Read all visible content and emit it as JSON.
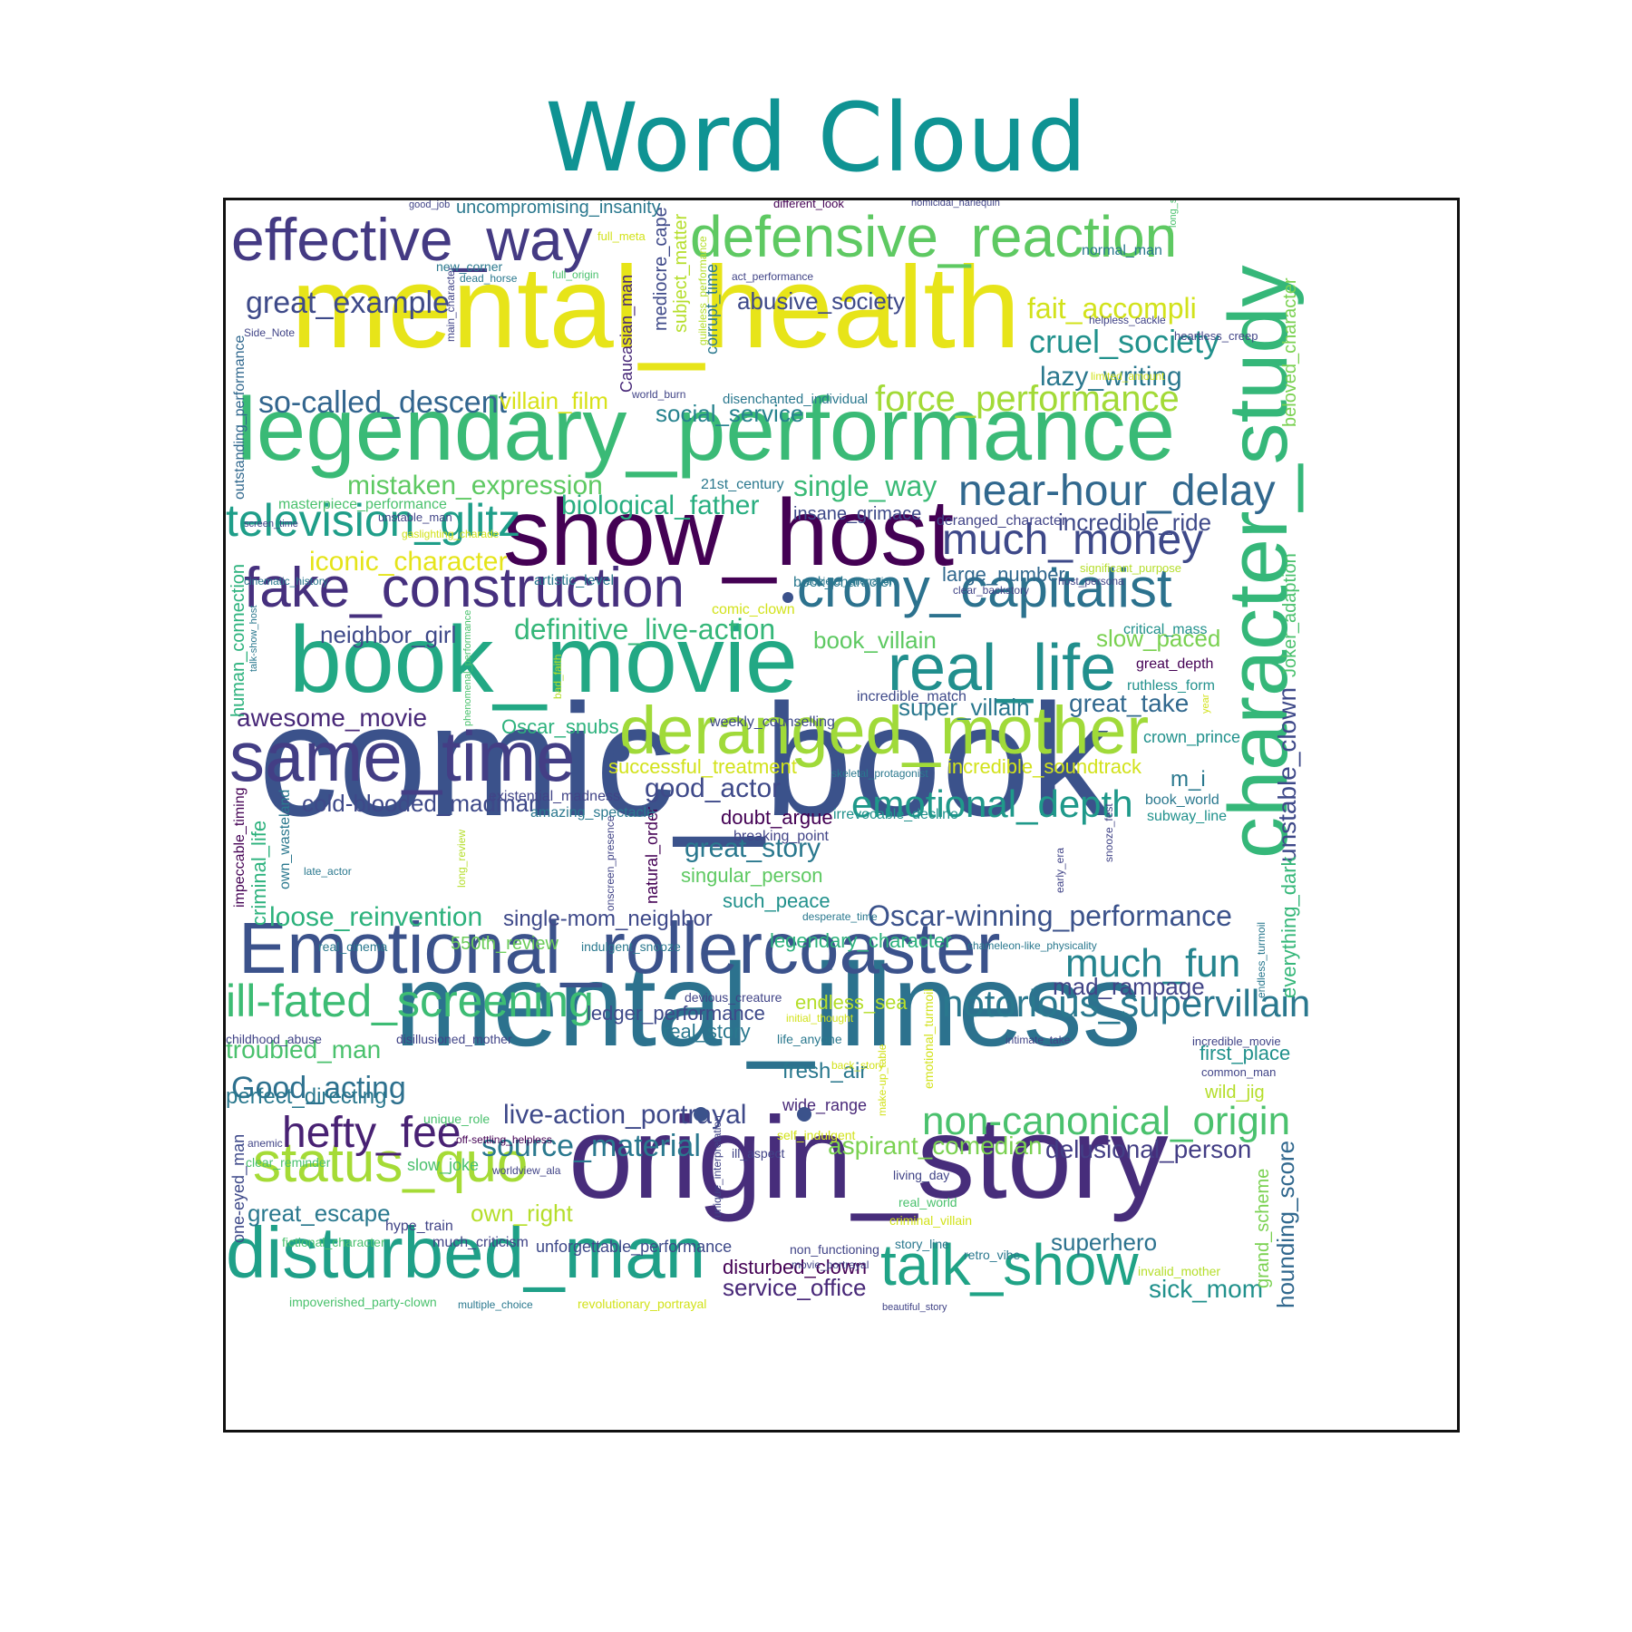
{
  "chart_data": {
    "type": "wordcloud",
    "title": "Word Cloud",
    "colormap": "viridis",
    "words": [
      {
        "text": "comic_book",
        "rank": 1,
        "color": "#3b528b"
      },
      {
        "text": "mental_health",
        "rank": 2,
        "color": "#e7e419"
      },
      {
        "text": "mental_illness",
        "rank": 3,
        "color": "#2c728e"
      },
      {
        "text": "origin_story",
        "rank": 4,
        "color": "#472d7b"
      },
      {
        "text": "legendary_performance",
        "rank": 5,
        "color": "#3aba76"
      },
      {
        "text": "character_study",
        "rank": 6,
        "color": "#35b779"
      },
      {
        "text": "show_host",
        "rank": 7,
        "color": "#440154"
      },
      {
        "text": "book_movie",
        "rank": 8,
        "color": "#22a884"
      },
      {
        "text": "Emotional_rollercoaster",
        "rank": 9,
        "color": "#3b528b"
      },
      {
        "text": "disturbed_man",
        "rank": 10,
        "color": "#1fa088"
      },
      {
        "text": "defensive_reaction",
        "rank": 11,
        "color": "#5ec962"
      },
      {
        "text": "effective_way",
        "rank": 12,
        "color": "#443a83"
      },
      {
        "text": "same_time",
        "rank": 13,
        "color": "#433e85"
      },
      {
        "text": "deranged_mother",
        "rank": 14,
        "color": "#a0da39"
      },
      {
        "text": "real_life",
        "rank": 15,
        "color": "#218f8d"
      },
      {
        "text": "fake_construction",
        "rank": 16,
        "color": "#46307e"
      },
      {
        "text": "crony_capitalist",
        "rank": 17,
        "color": "#2c728e"
      },
      {
        "text": "talk_show",
        "rank": 18,
        "color": "#20a386"
      },
      {
        "text": "status_quo",
        "rank": 19,
        "color": "#a5db36"
      },
      {
        "text": "ill-fated_screening",
        "rank": 20,
        "color": "#3dbc74"
      },
      {
        "text": "notorious_supervillain",
        "rank": 21,
        "color": "#2a788e"
      },
      {
        "text": "non-canonical_origin",
        "rank": 22,
        "color": "#4ac16d"
      },
      {
        "text": "television_glitz",
        "rank": 23,
        "color": "#1f9e89"
      },
      {
        "text": "much_money",
        "rank": 24,
        "color": "#3e4989"
      },
      {
        "text": "near-hour_delay",
        "rank": 25,
        "color": "#31688e"
      },
      {
        "text": "emotional_depth",
        "rank": 26,
        "color": "#1f998a"
      },
      {
        "text": "much_fun",
        "rank": 27,
        "color": "#25848e"
      },
      {
        "text": "hefty_fee",
        "rank": 28,
        "color": "#482173"
      },
      {
        "text": "force_performance",
        "rank": 29,
        "color": "#a2da37"
      },
      {
        "text": "Oscar-winning_performance",
        "rank": 30,
        "color": "#3b528b"
      },
      {
        "text": "Good_acting",
        "rank": 31,
        "color": "#2d708e"
      },
      {
        "text": "cruel_society",
        "rank": 32,
        "color": "#21918c"
      },
      {
        "text": "fait_accompli",
        "rank": 33,
        "color": "#d2e21b"
      },
      {
        "text": "great_example",
        "rank": 34,
        "color": "#3e4a89"
      },
      {
        "text": "so-called_descent",
        "rank": 35,
        "color": "#32658e"
      },
      {
        "text": "mistaken_expression",
        "rank": 36,
        "color": "#5ec962"
      },
      {
        "text": "single_way",
        "rank": 37,
        "color": "#3aba76"
      },
      {
        "text": "biological_father",
        "rank": 38,
        "color": "#28ae80"
      },
      {
        "text": "iconic_character",
        "rank": 39,
        "color": "#e5e419"
      },
      {
        "text": "live-action_portrayal",
        "rank": 40,
        "color": "#3e4989"
      },
      {
        "text": "source_material",
        "rank": 41,
        "color": "#2a788e"
      },
      {
        "text": "aspirant_comedian",
        "rank": 42,
        "color": "#7ad151"
      },
      {
        "text": "delusional_person",
        "rank": 43,
        "color": "#433e85"
      },
      {
        "text": "definitive_live-action",
        "rank": 44,
        "color": "#35b779"
      },
      {
        "text": "good_actor",
        "rank": 45,
        "color": "#3e4989"
      },
      {
        "text": "great_story",
        "rank": 46,
        "color": "#2a788e"
      },
      {
        "text": "loose_reinvention",
        "rank": 47,
        "color": "#2db27d"
      },
      {
        "text": "single-mom_neighbor",
        "rank": 48,
        "color": "#3e4989"
      },
      {
        "text": "awesome_movie",
        "rank": 49,
        "color": "#482878"
      },
      {
        "text": "cold-blooded_madman",
        "rank": 50,
        "color": "#3e4989"
      },
      {
        "text": "troubled_man",
        "rank": 51,
        "color": "#4ac16d"
      },
      {
        "text": "lazy_writing",
        "rank": 52,
        "color": "#2a788e"
      },
      {
        "text": "abusive_society",
        "rank": 53,
        "color": "#3e4989"
      },
      {
        "text": "social_service",
        "rank": 54,
        "color": "#26828e"
      },
      {
        "text": "incredible_ride",
        "rank": 55,
        "color": "#3e4989"
      },
      {
        "text": "great_take",
        "rank": 56,
        "color": "#31688e"
      },
      {
        "text": "super_villain",
        "rank": 57,
        "color": "#2a788e"
      },
      {
        "text": "villain_film",
        "rank": 58,
        "color": "#d8e219"
      },
      {
        "text": "neighbor_girl",
        "rank": 59,
        "color": "#3e4989"
      },
      {
        "text": "book_villain",
        "rank": 60,
        "color": "#5ec962"
      },
      {
        "text": "slow_paced",
        "rank": 61,
        "color": "#7ad151"
      },
      {
        "text": "mad_rampage",
        "rank": 62,
        "color": "#414487"
      },
      {
        "text": "great_escape",
        "rank": 63,
        "color": "#2a788e"
      },
      {
        "text": "own_right",
        "rank": 64,
        "color": "#b5de2b"
      },
      {
        "text": "superhero",
        "rank": 65,
        "color": "#2c728e"
      },
      {
        "text": "sick_mom",
        "rank": 66,
        "color": "#21918c"
      },
      {
        "text": "service_office",
        "rank": 67,
        "color": "#482878"
      },
      {
        "text": "disturbed_clown",
        "rank": 68,
        "color": "#440154"
      },
      {
        "text": "perfect_directing",
        "rank": 69,
        "color": "#2a788e"
      },
      {
        "text": "fresh_air",
        "rank": 70,
        "color": "#2a788e"
      },
      {
        "text": "successful_treatment",
        "rank": 71,
        "color": "#d2e21b"
      },
      {
        "text": "incredible_soundtrack",
        "rank": 72,
        "color": "#d2e21b"
      },
      {
        "text": "Oscar_snubs",
        "rank": 73,
        "color": "#2db27d"
      },
      {
        "text": "doubt_argue",
        "rank": 74,
        "color": "#440154"
      },
      {
        "text": "singular_person",
        "rank": 75,
        "color": "#5ec962"
      },
      {
        "text": "such_peace",
        "rank": 76,
        "color": "#21918c"
      },
      {
        "text": "legendary_character",
        "rank": 77,
        "color": "#2db27d"
      },
      {
        "text": "550th_review",
        "rank": 78,
        "color": "#6ccd5a"
      },
      {
        "text": "endless_sea",
        "rank": 79,
        "color": "#b5de2b"
      },
      {
        "text": "ledger_performance",
        "rank": 80,
        "color": "#3e4989"
      },
      {
        "text": "real_story",
        "rank": 81,
        "color": "#2a788e"
      },
      {
        "text": "first_place",
        "rank": 82,
        "color": "#21918c"
      },
      {
        "text": "wild_jig",
        "rank": 83,
        "color": "#b5de2b"
      },
      {
        "text": "large_number",
        "rank": 84,
        "color": "#31688e"
      },
      {
        "text": "insane_grimace",
        "rank": 85,
        "color": "#3e4989"
      },
      {
        "text": "m_i",
        "rank": 86,
        "color": "#2a788e"
      },
      {
        "text": "unforgettable_performance",
        "rank": 87,
        "color": "#3e4989"
      },
      {
        "text": "slow_joke",
        "rank": 88,
        "color": "#4ac16d"
      },
      {
        "text": "hype_train",
        "rank": 89,
        "color": "#414487"
      },
      {
        "text": "much_criticism",
        "rank": 90,
        "color": "#414487"
      },
      {
        "text": "wide_range",
        "rank": 91,
        "color": "#482878"
      },
      {
        "text": "unstable_clown",
        "rank": 92,
        "color": "#3e4989"
      },
      {
        "text": "hounding_score",
        "rank": 93,
        "color": "#31688e"
      },
      {
        "text": "everything_dark",
        "rank": 94,
        "color": "#35b779"
      },
      {
        "text": "Joker_adaption",
        "rank": 95,
        "color": "#4ac16d"
      },
      {
        "text": "beloved_character",
        "rank": 96,
        "color": "#7ad151"
      },
      {
        "text": "grand_scheme",
        "rank": 97,
        "color": "#7ad151"
      },
      {
        "text": "criminal_life",
        "rank": 98,
        "color": "#2db27d"
      },
      {
        "text": "human_connection",
        "rank": 99,
        "color": "#2db27d"
      },
      {
        "text": "outstanding_performance",
        "rank": 100,
        "color": "#31688e"
      },
      {
        "text": "one-eyed_man",
        "rank": 101,
        "color": "#3e4989"
      },
      {
        "text": "impeccable_timing",
        "rank": 102,
        "color": "#440154"
      },
      {
        "text": "own_wasteland",
        "rank": 103,
        "color": "#2a788e"
      },
      {
        "text": "mediocre_cape",
        "rank": 104,
        "color": "#3e4989"
      },
      {
        "text": "subject_matter",
        "rank": 105,
        "color": "#b5de2b"
      },
      {
        "text": "corrupt_time",
        "rank": 106,
        "color": "#2a788e"
      },
      {
        "text": "Caucasian_man",
        "rank": 107,
        "color": "#482878"
      },
      {
        "text": "natural_order",
        "rank": 108,
        "color": "#440154"
      },
      {
        "text": "uncompromising_insanity",
        "rank": 109,
        "color": "#2a788e"
      },
      {
        "text": "crown_prince",
        "rank": 110,
        "color": "#21918c"
      },
      {
        "text": "book_world",
        "rank": 111,
        "color": "#2a788e"
      },
      {
        "text": "subway_line",
        "rank": 112,
        "color": "#21918c"
      },
      {
        "text": "great_depth",
        "rank": 113,
        "color": "#440154"
      },
      {
        "text": "ruthless_form",
        "rank": 114,
        "color": "#21918c"
      },
      {
        "text": "incredible_match",
        "rank": 115,
        "color": "#3e4989"
      },
      {
        "text": "weekly_counselling",
        "rank": 116,
        "color": "#3e4989"
      },
      {
        "text": "existential_madness",
        "rank": 117,
        "color": "#414487"
      },
      {
        "text": "amazing_spectacle",
        "rank": 118,
        "color": "#2a788e"
      },
      {
        "text": "breaking_point",
        "rank": 119,
        "color": "#414487"
      },
      {
        "text": "irrevocable_decline",
        "rank": 120,
        "color": "#21918c"
      },
      {
        "text": "artistic_level",
        "rank": 121,
        "color": "#2a788e"
      },
      {
        "text": "21st_century",
        "rank": 122,
        "color": "#2a788e"
      },
      {
        "text": "masterpiece_performance",
        "rank": 123,
        "color": "#4ac16d"
      },
      {
        "text": "unstable_man",
        "rank": 124,
        "color": "#414487"
      },
      {
        "text": "deranged_character",
        "rank": 125,
        "color": "#414487"
      },
      {
        "text": "disenchanted_individual",
        "rank": 126,
        "color": "#2a788e"
      },
      {
        "text": "book_character",
        "rank": 127,
        "color": "#2a788e"
      },
      {
        "text": "comic_clown",
        "rank": 128,
        "color": "#d2e21b"
      },
      {
        "text": "significant_purpose",
        "rank": 129,
        "color": "#b5de2b"
      },
      {
        "text": "critical_mass",
        "rank": 130,
        "color": "#21918c"
      },
      {
        "text": "normal_man",
        "rank": 131,
        "color": "#2a788e"
      },
      {
        "text": "heartless_creep",
        "rank": 132,
        "color": "#414487"
      },
      {
        "text": "helpless_cackle",
        "rank": 133,
        "color": "#414487"
      },
      {
        "text": "limited_amount",
        "rank": 134,
        "color": "#d2e21b"
      },
      {
        "text": "full_meta",
        "rank": 135,
        "color": "#d2e21b"
      },
      {
        "text": "new_corner",
        "rank": 136,
        "color": "#2a788e"
      },
      {
        "text": "dead_horse",
        "rank": 137,
        "color": "#2a788e"
      },
      {
        "text": "full_origin",
        "rank": 138,
        "color": "#4ac16d"
      },
      {
        "text": "act_performance",
        "rank": 139,
        "color": "#414487"
      },
      {
        "text": "world_burn",
        "rank": 140,
        "color": "#414487"
      },
      {
        "text": "Side_Note",
        "rank": 141,
        "color": "#414487"
      },
      {
        "text": "good_job",
        "rank": 142,
        "color": "#414487"
      },
      {
        "text": "different_look",
        "rank": 143,
        "color": "#440154"
      },
      {
        "text": "homicidal_harlequin",
        "rank": 144,
        "color": "#414487"
      },
      {
        "text": "long_shot",
        "rank": 145,
        "color": "#4ac16d"
      },
      {
        "text": "main_character",
        "rank": 146,
        "color": "#414487"
      },
      {
        "text": "guileless_performance",
        "rank": 147,
        "color": "#b5de2b"
      },
      {
        "text": "screen_time",
        "rank": 148,
        "color": "#414487"
      },
      {
        "text": "gaslighting_charade",
        "rank": 149,
        "color": "#d2e21b"
      },
      {
        "text": "cinematic_history",
        "rank": 150,
        "color": "#2a788e"
      },
      {
        "text": "talk-show_host",
        "rank": 151,
        "color": "#2a788e"
      },
      {
        "text": "phenomenal_performance",
        "rank": 152,
        "color": "#4ac16d"
      },
      {
        "text": "bad_faith",
        "rank": 153,
        "color": "#b5de2b"
      },
      {
        "text": "societal_alienation",
        "rank": 154,
        "color": "#2a788e"
      },
      {
        "text": "clear_backstory",
        "rank": 155,
        "color": "#414487"
      },
      {
        "text": "host_persona",
        "rank": 156,
        "color": "#414487"
      },
      {
        "text": "skeletal_protagonist",
        "rank": 157,
        "color": "#2a788e"
      },
      {
        "text": "year",
        "rank": 158,
        "color": "#d2e21b"
      },
      {
        "text": "late_actor",
        "rank": 159,
        "color": "#2a788e"
      },
      {
        "text": "long_review",
        "rank": 160,
        "color": "#b5de2b"
      },
      {
        "text": "onscreen_presence",
        "rank": 161,
        "color": "#414487"
      },
      {
        "text": "snooze_fest",
        "rank": 162,
        "color": "#414487"
      },
      {
        "text": "early_era",
        "rank": 163,
        "color": "#414487"
      },
      {
        "text": "desperate_time",
        "rank": 164,
        "color": "#2a788e"
      },
      {
        "text": "real_cinema",
        "rank": 165,
        "color": "#2a788e"
      },
      {
        "text": "indulgent_snooze",
        "rank": 166,
        "color": "#2a788e"
      },
      {
        "text": "chameleon-like_physicality",
        "rank": 167,
        "color": "#2a788e"
      },
      {
        "text": "endless_turmoil",
        "rank": 168,
        "color": "#2a788e"
      },
      {
        "text": "devious_creature",
        "rank": 169,
        "color": "#414487"
      },
      {
        "text": "initial_thought",
        "rank": 170,
        "color": "#d2e21b"
      },
      {
        "text": "emotional_turmoil",
        "rank": 171,
        "color": "#d2e21b"
      },
      {
        "text": "childhood_abuse",
        "rank": 172,
        "color": "#414487"
      },
      {
        "text": "disillusioned_mother",
        "rank": 173,
        "color": "#414487"
      },
      {
        "text": "life_anyone",
        "rank": 174,
        "color": "#2a788e"
      },
      {
        "text": "intimate_take",
        "rank": 175,
        "color": "#414487"
      },
      {
        "text": "incredible_movie",
        "rank": 176,
        "color": "#414487"
      },
      {
        "text": "common_man",
        "rank": 177,
        "color": "#414487"
      },
      {
        "text": "back_story",
        "rank": 178,
        "color": "#d2e21b"
      },
      {
        "text": "make-up_table",
        "rank": 179,
        "color": "#d2e21b"
      },
      {
        "text": "unique_role",
        "rank": 180,
        "color": "#4ac16d"
      },
      {
        "text": "anemic",
        "rank": 181,
        "color": "#414487"
      },
      {
        "text": "off-settling_helpless",
        "rank": 182,
        "color": "#440154"
      },
      {
        "text": "clear_reminder",
        "rank": 183,
        "color": "#4ac16d"
      },
      {
        "text": "self_indulgent",
        "rank": 184,
        "color": "#d2e21b"
      },
      {
        "text": "ill_aspect",
        "rank": 185,
        "color": "#414487"
      },
      {
        "text": "unique_interpretation",
        "rank": 186,
        "color": "#414487"
      },
      {
        "text": "worldview_ala",
        "rank": 187,
        "color": "#414487"
      },
      {
        "text": "living_day",
        "rank": 188,
        "color": "#414487"
      },
      {
        "text": "real_world",
        "rank": 189,
        "color": "#4ac16d"
      },
      {
        "text": "criminal_villain",
        "rank": 190,
        "color": "#d2e21b"
      },
      {
        "text": "story_line",
        "rank": 191,
        "color": "#2a788e"
      },
      {
        "text": "retro_vibe",
        "rank": 192,
        "color": "#2a788e"
      },
      {
        "text": "non_functioning",
        "rank": 193,
        "color": "#414487"
      },
      {
        "text": "movie_portrayal",
        "rank": 194,
        "color": "#414487"
      },
      {
        "text": "invalid_mother",
        "rank": 195,
        "color": "#b5de2b"
      },
      {
        "text": "fictional_character",
        "rank": 196,
        "color": "#4ac16d"
      },
      {
        "text": "impoverished_party-clown",
        "rank": 197,
        "color": "#4ac16d"
      },
      {
        "text": "multiple_choice",
        "rank": 198,
        "color": "#2a788e"
      },
      {
        "text": "revolutionary_portrayal",
        "rank": 199,
        "color": "#d2e21b"
      },
      {
        "text": "beautiful_story",
        "rank": 200,
        "color": "#414487"
      }
    ]
  }
}
